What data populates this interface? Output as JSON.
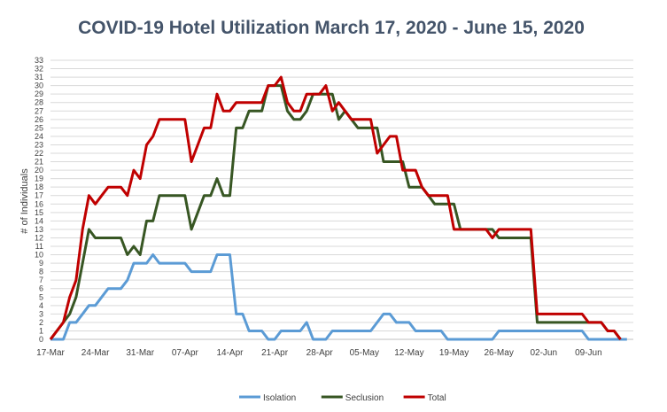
{
  "chart_data": {
    "type": "line",
    "title": "COVID-19 Hotel Utilization March 17, 2020 - June 15, 2020",
    "xlabel": "",
    "ylabel": "# of Individuals",
    "ylim": [
      0,
      33
    ],
    "yticks": [
      0,
      1,
      2,
      3,
      4,
      5,
      6,
      7,
      8,
      9,
      10,
      11,
      12,
      13,
      14,
      15,
      16,
      17,
      18,
      19,
      20,
      21,
      22,
      23,
      24,
      25,
      26,
      27,
      28,
      29,
      30,
      31,
      32,
      33
    ],
    "xlim_days": [
      0,
      91
    ],
    "xticks": [
      {
        "day": 0,
        "label": "17-Mar"
      },
      {
        "day": 7,
        "label": "24-Mar"
      },
      {
        "day": 14,
        "label": "31-Mar"
      },
      {
        "day": 21,
        "label": "07-Apr"
      },
      {
        "day": 28,
        "label": "14-Apr"
      },
      {
        "day": 35,
        "label": "21-Apr"
      },
      {
        "day": 42,
        "label": "28-Apr"
      },
      {
        "day": 49,
        "label": "05-May"
      },
      {
        "day": 56,
        "label": "12-May"
      },
      {
        "day": 63,
        "label": "19-May"
      },
      {
        "day": 70,
        "label": "26-May"
      },
      {
        "day": 77,
        "label": "02-Jun"
      },
      {
        "day": 84,
        "label": "09-Jun"
      }
    ],
    "grid": true,
    "legend_position": "bottom",
    "series": [
      {
        "name": "Isolation",
        "color": "#5b9bd5",
        "points": [
          [
            0,
            0
          ],
          [
            2,
            0
          ],
          [
            3,
            2
          ],
          [
            4,
            2
          ],
          [
            5,
            3
          ],
          [
            6,
            4
          ],
          [
            7,
            4
          ],
          [
            8,
            5
          ],
          [
            9,
            6
          ],
          [
            10,
            6
          ],
          [
            11,
            6
          ],
          [
            12,
            7
          ],
          [
            13,
            9
          ],
          [
            14,
            9
          ],
          [
            15,
            9
          ],
          [
            16,
            10
          ],
          [
            17,
            9
          ],
          [
            18,
            9
          ],
          [
            19,
            9
          ],
          [
            20,
            9
          ],
          [
            21,
            9
          ],
          [
            22,
            8
          ],
          [
            23,
            8
          ],
          [
            24,
            8
          ],
          [
            25,
            8
          ],
          [
            26,
            10
          ],
          [
            27,
            10
          ],
          [
            28,
            10
          ],
          [
            29,
            3
          ],
          [
            30,
            3
          ],
          [
            31,
            1
          ],
          [
            32,
            1
          ],
          [
            33,
            1
          ],
          [
            34,
            0
          ],
          [
            35,
            0
          ],
          [
            36,
            1
          ],
          [
            37,
            1
          ],
          [
            38,
            1
          ],
          [
            39,
            1
          ],
          [
            40,
            2
          ],
          [
            41,
            0
          ],
          [
            42,
            0
          ],
          [
            43,
            0
          ],
          [
            44,
            1
          ],
          [
            45,
            1
          ],
          [
            46,
            1
          ],
          [
            47,
            1
          ],
          [
            48,
            1
          ],
          [
            49,
            1
          ],
          [
            50,
            1
          ],
          [
            51,
            2
          ],
          [
            52,
            3
          ],
          [
            53,
            3
          ],
          [
            54,
            2
          ],
          [
            55,
            2
          ],
          [
            56,
            2
          ],
          [
            57,
            1
          ],
          [
            58,
            1
          ],
          [
            59,
            1
          ],
          [
            60,
            1
          ],
          [
            61,
            1
          ],
          [
            62,
            0
          ],
          [
            63,
            0
          ],
          [
            68,
            0
          ],
          [
            69,
            0
          ],
          [
            70,
            1
          ],
          [
            71,
            1
          ],
          [
            82,
            1
          ],
          [
            83,
            1
          ],
          [
            84,
            0
          ],
          [
            88,
            0
          ],
          [
            89,
            0
          ],
          [
            90,
            0
          ]
        ]
      },
      {
        "name": "Seclusion",
        "color": "#375623",
        "points": [
          [
            0,
            0
          ],
          [
            1,
            1
          ],
          [
            2,
            2
          ],
          [
            3,
            3
          ],
          [
            4,
            5
          ],
          [
            5,
            9
          ],
          [
            6,
            13
          ],
          [
            7,
            12
          ],
          [
            8,
            12
          ],
          [
            9,
            12
          ],
          [
            10,
            12
          ],
          [
            11,
            12
          ],
          [
            12,
            10
          ],
          [
            13,
            11
          ],
          [
            14,
            10
          ],
          [
            15,
            14
          ],
          [
            16,
            14
          ],
          [
            17,
            17
          ],
          [
            18,
            17
          ],
          [
            19,
            17
          ],
          [
            20,
            17
          ],
          [
            21,
            17
          ],
          [
            22,
            13
          ],
          [
            23,
            15
          ],
          [
            24,
            17
          ],
          [
            25,
            17
          ],
          [
            26,
            19
          ],
          [
            27,
            17
          ],
          [
            28,
            17
          ],
          [
            29,
            25
          ],
          [
            30,
            25
          ],
          [
            31,
            27
          ],
          [
            32,
            27
          ],
          [
            33,
            27
          ],
          [
            34,
            30
          ],
          [
            35,
            30
          ],
          [
            36,
            30
          ],
          [
            37,
            27
          ],
          [
            38,
            26
          ],
          [
            39,
            26
          ],
          [
            40,
            27
          ],
          [
            41,
            29
          ],
          [
            42,
            29
          ],
          [
            43,
            29
          ],
          [
            44,
            29
          ],
          [
            45,
            26
          ],
          [
            46,
            27
          ],
          [
            47,
            26
          ],
          [
            48,
            25
          ],
          [
            49,
            25
          ],
          [
            50,
            25
          ],
          [
            51,
            25
          ],
          [
            52,
            21
          ],
          [
            53,
            21
          ],
          [
            54,
            21
          ],
          [
            55,
            21
          ],
          [
            56,
            18
          ],
          [
            57,
            18
          ],
          [
            58,
            18
          ],
          [
            59,
            17
          ],
          [
            60,
            16
          ],
          [
            61,
            16
          ],
          [
            62,
            16
          ],
          [
            63,
            16
          ],
          [
            64,
            13
          ],
          [
            65,
            13
          ],
          [
            66,
            13
          ],
          [
            67,
            13
          ],
          [
            68,
            13
          ],
          [
            69,
            13
          ],
          [
            70,
            12
          ],
          [
            71,
            12
          ],
          [
            72,
            12
          ],
          [
            73,
            12
          ],
          [
            74,
            12
          ],
          [
            75,
            12
          ],
          [
            76,
            2
          ],
          [
            77,
            2
          ],
          [
            78,
            2
          ],
          [
            79,
            2
          ],
          [
            80,
            2
          ],
          [
            81,
            2
          ],
          [
            82,
            2
          ],
          [
            83,
            2
          ],
          [
            84,
            2
          ],
          [
            85,
            2
          ],
          [
            86,
            2
          ],
          [
            87,
            1
          ],
          [
            88,
            1
          ],
          [
            89,
            0
          ]
        ]
      },
      {
        "name": "Total",
        "color": "#c00000",
        "points": [
          [
            0,
            0
          ],
          [
            2,
            2
          ],
          [
            3,
            5
          ],
          [
            4,
            7
          ],
          [
            5,
            13
          ],
          [
            6,
            17
          ],
          [
            7,
            16
          ],
          [
            8,
            17
          ],
          [
            9,
            18
          ],
          [
            10,
            18
          ],
          [
            11,
            18
          ],
          [
            12,
            17
          ],
          [
            13,
            20
          ],
          [
            14,
            19
          ],
          [
            15,
            23
          ],
          [
            16,
            24
          ],
          [
            17,
            26
          ],
          [
            18,
            26
          ],
          [
            19,
            26
          ],
          [
            20,
            26
          ],
          [
            21,
            26
          ],
          [
            22,
            21
          ],
          [
            23,
            23
          ],
          [
            24,
            25
          ],
          [
            25,
            25
          ],
          [
            26,
            29
          ],
          [
            27,
            27
          ],
          [
            28,
            27
          ],
          [
            29,
            28
          ],
          [
            30,
            28
          ],
          [
            31,
            28
          ],
          [
            32,
            28
          ],
          [
            33,
            28
          ],
          [
            34,
            30
          ],
          [
            35,
            30
          ],
          [
            36,
            31
          ],
          [
            37,
            28
          ],
          [
            38,
            27
          ],
          [
            39,
            27
          ],
          [
            40,
            29
          ],
          [
            41,
            29
          ],
          [
            42,
            29
          ],
          [
            43,
            30
          ],
          [
            44,
            27
          ],
          [
            45,
            28
          ],
          [
            46,
            27
          ],
          [
            47,
            26
          ],
          [
            48,
            26
          ],
          [
            49,
            26
          ],
          [
            50,
            26
          ],
          [
            51,
            22
          ],
          [
            52,
            23
          ],
          [
            53,
            24
          ],
          [
            54,
            24
          ],
          [
            55,
            20
          ],
          [
            56,
            20
          ],
          [
            57,
            20
          ],
          [
            58,
            18
          ],
          [
            59,
            17
          ],
          [
            60,
            17
          ],
          [
            61,
            17
          ],
          [
            62,
            17
          ],
          [
            63,
            13
          ],
          [
            64,
            13
          ],
          [
            65,
            13
          ],
          [
            66,
            13
          ],
          [
            67,
            13
          ],
          [
            68,
            13
          ],
          [
            69,
            12
          ],
          [
            70,
            13
          ],
          [
            71,
            13
          ],
          [
            72,
            13
          ],
          [
            73,
            13
          ],
          [
            74,
            13
          ],
          [
            75,
            13
          ],
          [
            76,
            3
          ],
          [
            77,
            3
          ],
          [
            78,
            3
          ],
          [
            79,
            3
          ],
          [
            80,
            3
          ],
          [
            81,
            3
          ],
          [
            82,
            3
          ],
          [
            83,
            3
          ],
          [
            84,
            2
          ],
          [
            85,
            2
          ],
          [
            86,
            2
          ],
          [
            87,
            1
          ],
          [
            88,
            1
          ],
          [
            89,
            0
          ]
        ]
      }
    ]
  }
}
